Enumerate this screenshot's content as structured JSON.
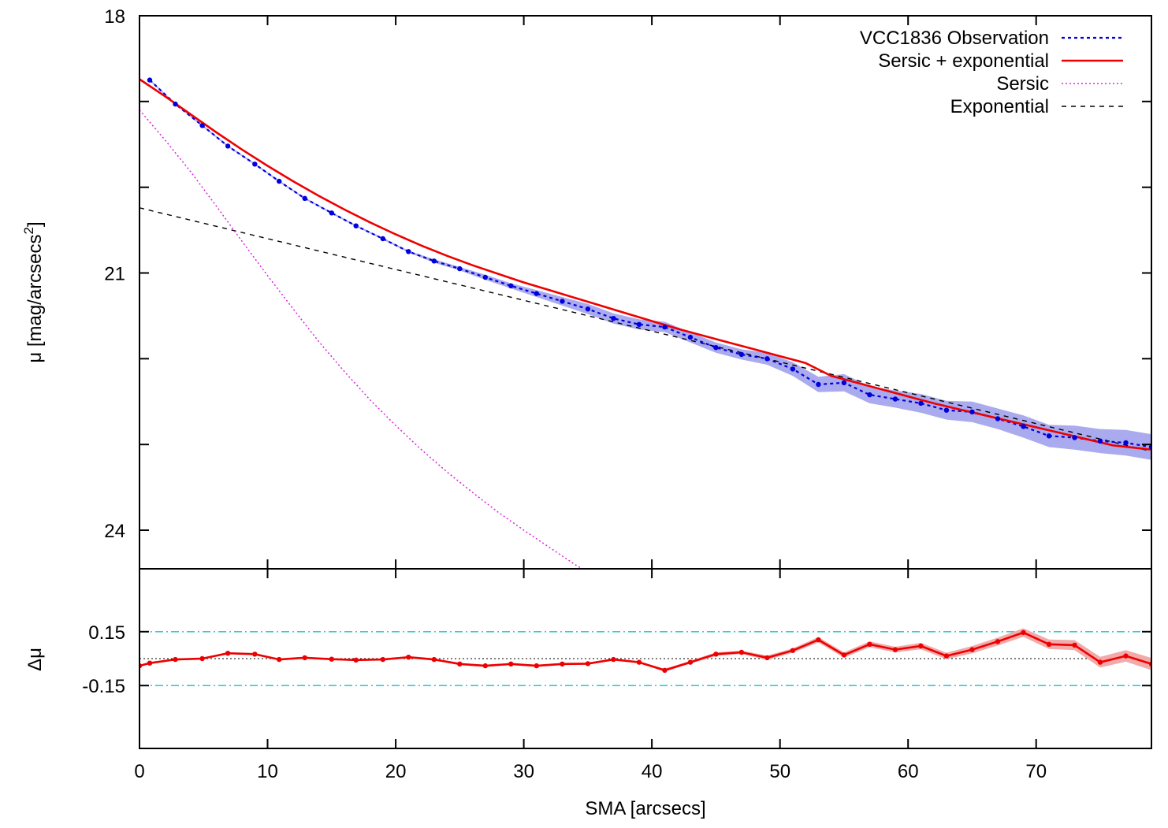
{
  "chart_data": [
    {
      "type": "line",
      "panel": "top",
      "title": "",
      "xlabel": "",
      "ylabel": "μ [mag/arcsecs",
      "ylabel_superscript": "2",
      "ylabel_close": "]",
      "xlim": [
        0,
        79
      ],
      "ylim": [
        18,
        24.45
      ],
      "y_inverted": true,
      "yticks": [
        18,
        21,
        24
      ],
      "ytick_labels": [
        "18",
        "21",
        "24"
      ],
      "yticks_minor": [
        19,
        20,
        22,
        23
      ],
      "xticks": [
        0,
        10,
        20,
        30,
        40,
        50,
        60,
        70
      ],
      "grid": false,
      "legend_position": "top-right",
      "colors": {
        "observation": "#0000dd",
        "band": "#aaaaee",
        "fit": "#ee0000",
        "sersic": "#dd22dd",
        "exponential": "#000000"
      },
      "series": [
        {
          "name": "VCC1836 Observation",
          "style": "dotted-with-points",
          "x": [
            0.8,
            2.8,
            4.9,
            6.9,
            9.0,
            10.9,
            12.9,
            15.0,
            16.9,
            19.0,
            21.0,
            23.0,
            25.0,
            27.0,
            29.0,
            31.0,
            33.0,
            35.0,
            37.0,
            39.0,
            41.0,
            43.0,
            45.0,
            47.0,
            49.0,
            51.0,
            53.0,
            55.0,
            57.0,
            59.0,
            61.0,
            63.0,
            65.0,
            67.0,
            69.0,
            71.0,
            73.0,
            75.0,
            77.0,
            79.0
          ],
          "y": [
            18.75,
            19.03,
            19.28,
            19.52,
            19.73,
            19.93,
            20.13,
            20.3,
            20.45,
            20.6,
            20.75,
            20.86,
            20.95,
            21.05,
            21.15,
            21.24,
            21.33,
            21.42,
            21.53,
            21.6,
            21.63,
            21.75,
            21.87,
            21.95,
            22.0,
            22.12,
            22.3,
            22.28,
            22.42,
            22.47,
            22.52,
            22.6,
            22.62,
            22.7,
            22.79,
            22.9,
            22.92,
            22.96,
            22.98,
            23.03
          ],
          "y_err": [
            0.01,
            0.01,
            0.01,
            0.01,
            0.01,
            0.01,
            0.01,
            0.01,
            0.01,
            0.01,
            0.01,
            0.02,
            0.02,
            0.03,
            0.03,
            0.04,
            0.05,
            0.06,
            0.06,
            0.06,
            0.06,
            0.06,
            0.06,
            0.06,
            0.07,
            0.08,
            0.09,
            0.1,
            0.1,
            0.1,
            0.11,
            0.11,
            0.12,
            0.12,
            0.13,
            0.13,
            0.14,
            0.14,
            0.15,
            0.15
          ]
        },
        {
          "name": "Sersic + exponential",
          "style": "solid",
          "x": [
            0,
            2,
            4,
            6,
            8,
            10,
            12,
            14,
            16,
            18,
            20,
            22,
            24,
            26,
            28,
            30,
            32,
            34,
            36,
            38,
            40,
            42,
            44,
            46,
            48,
            50,
            52,
            54,
            56,
            58,
            60,
            62,
            64,
            66,
            68,
            70,
            72,
            74,
            76,
            79
          ],
          "y": [
            18.74,
            18.94,
            19.15,
            19.36,
            19.56,
            19.75,
            19.93,
            20.1,
            20.26,
            20.41,
            20.55,
            20.68,
            20.8,
            20.91,
            21.01,
            21.11,
            21.2,
            21.29,
            21.38,
            21.47,
            21.56,
            21.65,
            21.73,
            21.81,
            21.89,
            21.97,
            22.05,
            22.2,
            22.28,
            22.36,
            22.44,
            22.52,
            22.59,
            22.66,
            22.73,
            22.8,
            22.87,
            22.94,
            23.01,
            23.06
          ]
        },
        {
          "name": "Sersic",
          "style": "dotted",
          "x": [
            0,
            2,
            4,
            6,
            8,
            10,
            12,
            14,
            16,
            18,
            20,
            22,
            24,
            26,
            28,
            30,
            32,
            34,
            36,
            38,
            40,
            42,
            44.4
          ],
          "y": [
            19.1,
            19.45,
            19.82,
            20.22,
            20.63,
            21.03,
            21.42,
            21.8,
            22.15,
            22.48,
            22.78,
            23.06,
            23.32,
            23.56,
            23.79,
            24.0,
            24.2,
            24.4,
            24.58,
            24.76,
            24.95,
            25.15,
            25.4
          ]
        },
        {
          "name": "Exponential",
          "style": "dashed",
          "x": [
            0,
            79
          ],
          "y": [
            20.24,
            23.08
          ]
        }
      ]
    },
    {
      "type": "line",
      "panel": "bottom",
      "title": "",
      "xlabel": "SMA [arcsecs]",
      "ylabel": "Δμ",
      "xlim": [
        0,
        79
      ],
      "ylim": [
        -0.5,
        0.5
      ],
      "yticks": [
        0.15,
        -0.15
      ],
      "ytick_labels": [
        "0.15",
        "-0.15"
      ],
      "xticks": [
        0,
        10,
        20,
        30,
        40,
        50,
        60,
        70
      ],
      "xtick_labels": [
        "0",
        "10",
        "20",
        "30",
        "40",
        "50",
        "60",
        "70"
      ],
      "reference_lines": [
        {
          "y": 0.15,
          "style": "dash-dot",
          "color": "#33cccc"
        },
        {
          "y": -0.15,
          "style": "dash-dot",
          "color": "#33cccc"
        },
        {
          "y": 0.0,
          "style": "dotted",
          "color": "#000000"
        }
      ],
      "grid": false,
      "series": [
        {
          "style": "solid-with-points",
          "color": "#ee0000",
          "band_color": "#f2aaaa",
          "x": [
            0,
            0.8,
            2.8,
            4.9,
            6.9,
            9.0,
            10.9,
            12.9,
            15.0,
            16.9,
            19.0,
            21.0,
            23.0,
            25.0,
            27.0,
            29.0,
            31.0,
            33.0,
            35.0,
            37.0,
            39.0,
            41.0,
            43.0,
            45.0,
            47.0,
            49.0,
            51.0,
            53.0,
            55.0,
            57.0,
            59.0,
            61.0,
            63.0,
            65.0,
            67.0,
            69.0,
            71.0,
            73.0,
            75.0,
            77.0,
            79.0
          ],
          "y": [
            -0.04,
            -0.025,
            -0.005,
            0.0,
            0.03,
            0.025,
            -0.005,
            0.005,
            -0.003,
            -0.008,
            -0.005,
            0.008,
            -0.005,
            -0.03,
            -0.04,
            -0.03,
            -0.04,
            -0.03,
            -0.028,
            -0.005,
            -0.02,
            -0.065,
            -0.02,
            0.025,
            0.035,
            0.005,
            0.045,
            0.105,
            0.02,
            0.08,
            0.05,
            0.07,
            0.015,
            0.05,
            0.095,
            0.145,
            0.08,
            0.075,
            -0.02,
            0.015,
            -0.03
          ],
          "y_err": [
            0.005,
            0.005,
            0.005,
            0.005,
            0.005,
            0.005,
            0.005,
            0.005,
            0.005,
            0.005,
            0.005,
            0.006,
            0.006,
            0.006,
            0.006,
            0.006,
            0.006,
            0.006,
            0.006,
            0.006,
            0.006,
            0.008,
            0.008,
            0.01,
            0.01,
            0.012,
            0.012,
            0.015,
            0.015,
            0.016,
            0.016,
            0.018,
            0.018,
            0.02,
            0.022,
            0.024,
            0.026,
            0.028,
            0.03,
            0.032,
            0.034
          ]
        }
      ]
    }
  ]
}
